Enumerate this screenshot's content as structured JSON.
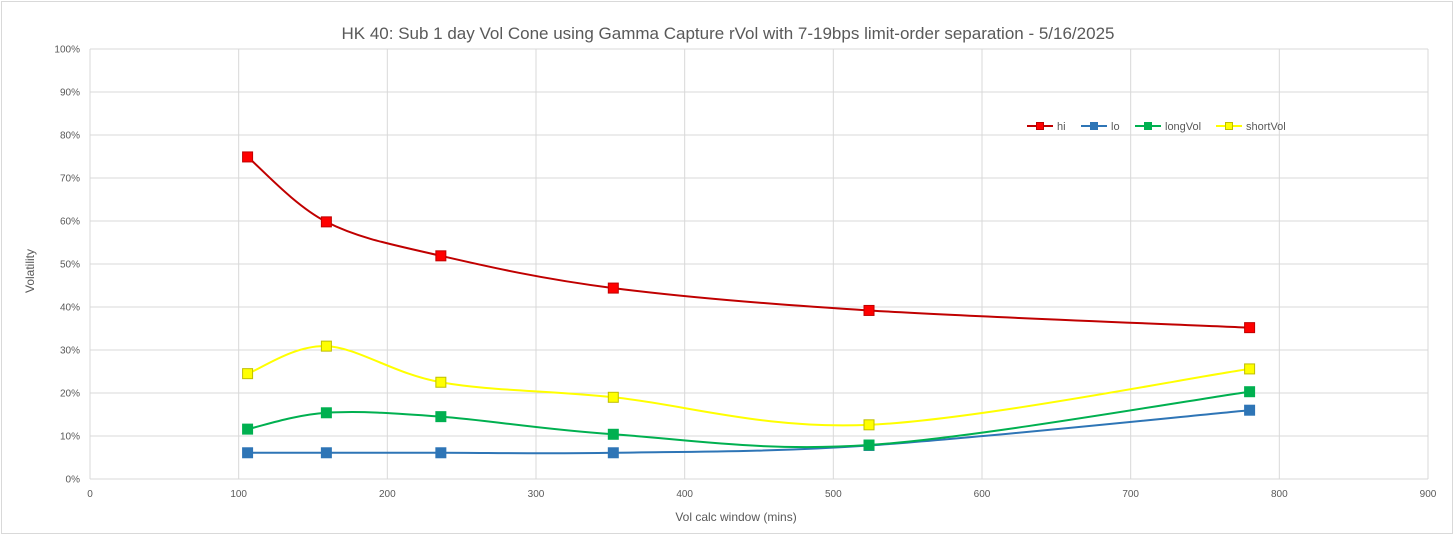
{
  "chart_data": {
    "type": "line",
    "title": "HK 40: Sub 1 day Vol Cone using Gamma Capture rVol with 7-19bps limit-order separation - 5/16/2025",
    "xlabel": "Vol calc window (mins)",
    "ylabel": "Volatility",
    "xlim": [
      0,
      900
    ],
    "ylim": [
      0,
      1
    ],
    "xticks": [
      0,
      100,
      200,
      300,
      400,
      500,
      600,
      700,
      800,
      900
    ],
    "xtick_labels": [
      "0",
      "100",
      "200",
      "300",
      "400",
      "500",
      "600",
      "700",
      "800",
      "900"
    ],
    "yticks": [
      0,
      0.1,
      0.2,
      0.3,
      0.4,
      0.5,
      0.6,
      0.7,
      0.8,
      0.9,
      1.0
    ],
    "ytick_labels": [
      "0%",
      "10%",
      "20%",
      "30%",
      "40%",
      "50%",
      "60%",
      "70%",
      "80%",
      "90%",
      "100%"
    ],
    "grid": true,
    "legend_position": "top-right",
    "x": [
      106,
      159,
      236,
      352,
      524,
      780
    ],
    "series": [
      {
        "name": "hi",
        "color": "#c00000",
        "fill": "#ff0000",
        "values": [
          0.749,
          0.598,
          0.519,
          0.444,
          0.392,
          0.352
        ]
      },
      {
        "name": "lo",
        "color": "#2e75b6",
        "fill": "#2e75b6",
        "values": [
          0.061,
          0.061,
          0.061,
          0.061,
          0.078,
          0.16
        ]
      },
      {
        "name": "longVol",
        "color": "#00b050",
        "fill": "#00b050",
        "values": [
          0.116,
          0.154,
          0.145,
          0.104,
          0.079,
          0.203
        ]
      },
      {
        "name": "shortVol",
        "color": "#ffff00",
        "fill": "#ffff00",
        "values": [
          0.245,
          0.309,
          0.225,
          0.19,
          0.126,
          0.256
        ]
      }
    ]
  }
}
